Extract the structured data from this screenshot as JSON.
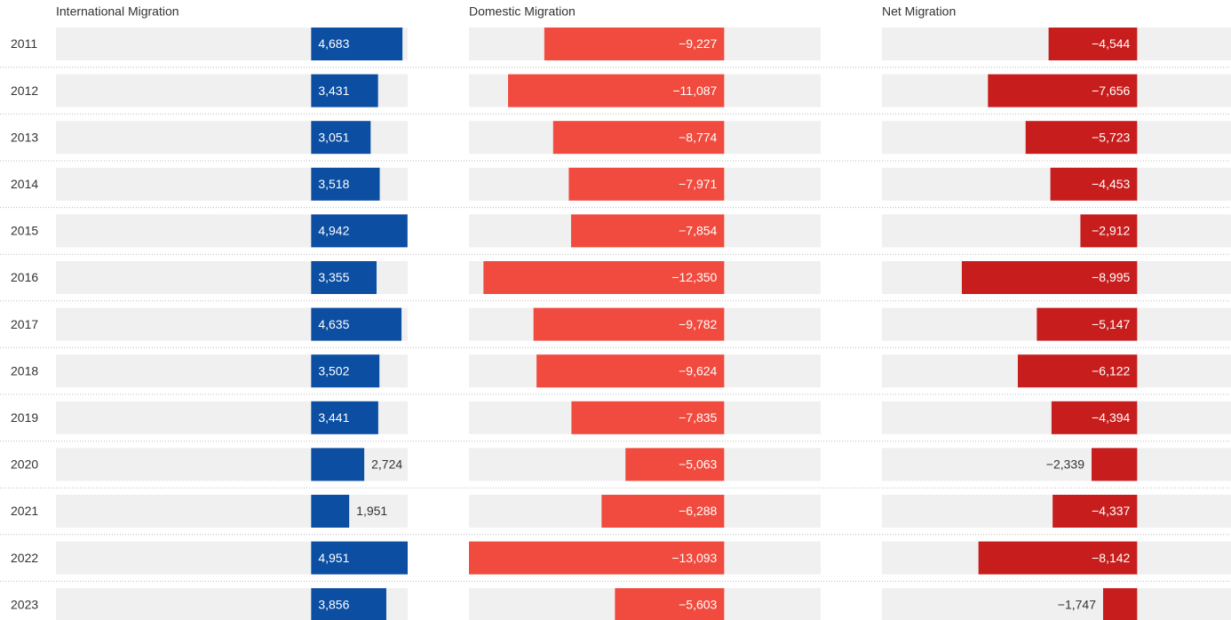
{
  "chart_data": {
    "type": "bar",
    "categories": [
      "2011",
      "2012",
      "2013",
      "2014",
      "2015",
      "2016",
      "2017",
      "2018",
      "2019",
      "2020",
      "2021",
      "2022",
      "2023"
    ],
    "xlim": [
      -13093,
      4951
    ],
    "series": [
      {
        "name": "International Migration",
        "color": "#0b4ea2",
        "values": [
          4683,
          3431,
          3051,
          3518,
          4942,
          3355,
          4635,
          3502,
          3441,
          2724,
          1951,
          4951,
          3856
        ],
        "value_labels": [
          "4,683",
          "3,431",
          "3,051",
          "3,518",
          "4,942",
          "3,355",
          "4,635",
          "3,502",
          "3,441",
          "2,724",
          "1,951",
          "4,951",
          "3,856"
        ]
      },
      {
        "name": "Domestic Migration",
        "color": "#f04b3e",
        "values": [
          -9227,
          -11087,
          -8774,
          -7971,
          -7854,
          -12350,
          -9782,
          -9624,
          -7835,
          -5063,
          -6288,
          -13093,
          -5603
        ],
        "value_labels": [
          "−9,227",
          "−11,087",
          "−8,774",
          "−7,971",
          "−7,854",
          "−12,350",
          "−9,782",
          "−9,624",
          "−7,835",
          "−5,063",
          "−6,288",
          "−13,093",
          "−5,603"
        ]
      },
      {
        "name": "Net Migration",
        "color": "#c71e1d",
        "values": [
          -4544,
          -7656,
          -5723,
          -4453,
          -2912,
          -8995,
          -5147,
          -6122,
          -4394,
          -2339,
          -4337,
          -8142,
          -1747
        ],
        "value_labels": [
          "−4,544",
          "−7,656",
          "−5,723",
          "−4,453",
          "−2,912",
          "−8,995",
          "−5,147",
          "−6,122",
          "−4,394",
          "−2,339",
          "−4,337",
          "−8,142",
          "−1,747"
        ]
      }
    ]
  }
}
